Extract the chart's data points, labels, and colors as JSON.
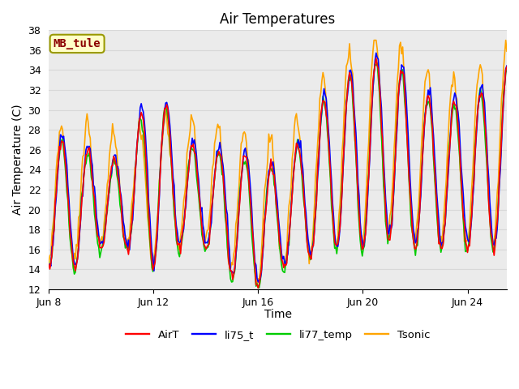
{
  "title": "Air Temperatures",
  "ylabel": "Air Temperature (C)",
  "xlabel": "Time",
  "annotation_text": "MB_tule",
  "annotation_bg": "#ffffc8",
  "annotation_border": "#999900",
  "annotation_text_color": "#8b0000",
  "ylim": [
    12,
    38
  ],
  "yticks": [
    12,
    14,
    16,
    18,
    20,
    22,
    24,
    26,
    28,
    30,
    32,
    34,
    36,
    38
  ],
  "xtick_labels": [
    "Jun 8",
    "Jun 12",
    "Jun 16",
    "Jun 20",
    "Jun 24"
  ],
  "xtick_positions": [
    0,
    4,
    8,
    12,
    16
  ],
  "grid_color": "#d8d8d8",
  "bg_color": "#ebebeb",
  "colors": {
    "AirT": "#ff0000",
    "li75_t": "#0000ff",
    "li77_temp": "#00cc00",
    "Tsonic": "#ffa500"
  },
  "line_width": 1.2,
  "title_fontsize": 12,
  "axis_label_fontsize": 10,
  "tick_fontsize": 9,
  "xlim_days": 17.5
}
